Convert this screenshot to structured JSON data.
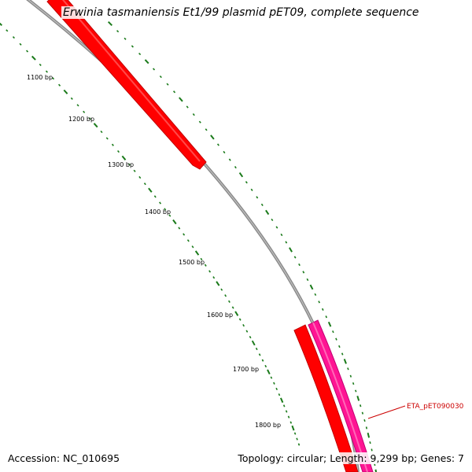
{
  "title": "Erwinia tasmaniensis Et1/99 plasmid pET09, complete sequence",
  "footer": {
    "accession": "Accession: NC_010695",
    "summary": "Topology: circular; Length: 9,299 bp; Genes: 7"
  },
  "scale": {
    "tick_labels": [
      "1100 bp",
      "1200 bp",
      "1300 bp",
      "1400 bp",
      "1500 bp",
      "1600 bp",
      "1700 bp",
      "1800 bp"
    ]
  },
  "genes": [
    {
      "label": "",
      "color": "#ff0000",
      "strand": "inner"
    },
    {
      "label": "",
      "color": "#ff0000",
      "strand": "inner"
    },
    {
      "label": "ETA_pET090030",
      "color": "#ff1493",
      "strand": "outer"
    }
  ],
  "colors": {
    "backbone": "#8a8a8a",
    "ticks": "#1a7a1a",
    "gene_red": "#ff0000",
    "gene_pink": "#ff1493",
    "label_red": "#cc0000"
  }
}
